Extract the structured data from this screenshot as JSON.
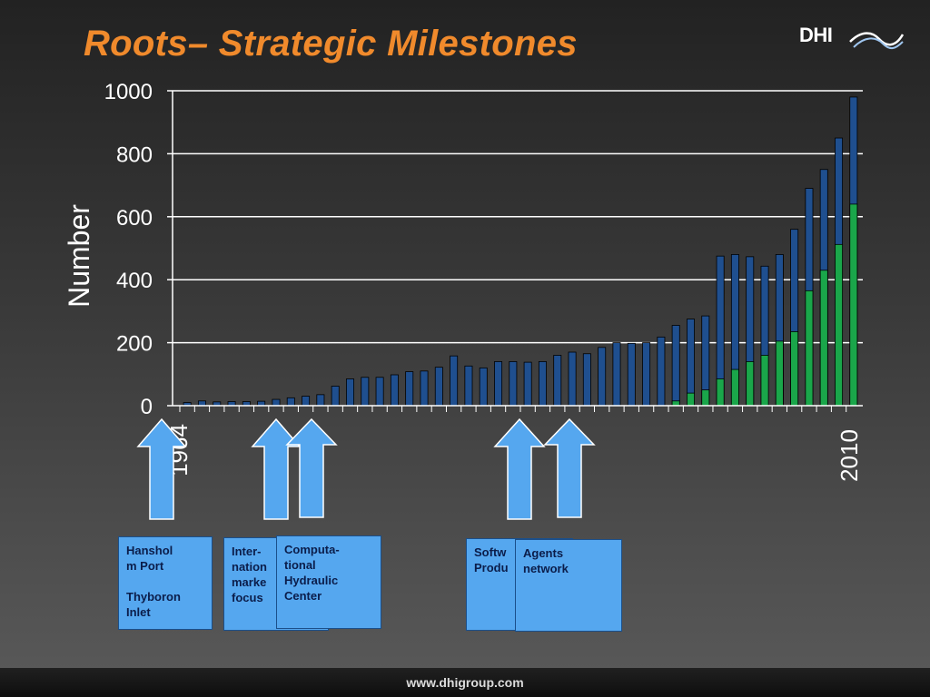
{
  "slide": {
    "title": "Roots– Strategic Milestones",
    "logo_text": "DHI",
    "footer": "www.dhigroup.com"
  },
  "colors": {
    "title": "#f08a2c",
    "bar_total": "#1f4f8f",
    "bar_software": "#1aa64a",
    "grid": "#ffffff",
    "text": "#ffffff",
    "arrow_fill": "#55a7ef",
    "box_fill": "#55a7ef"
  },
  "chart_data": {
    "type": "bar",
    "ylabel": "Number",
    "ylim": [
      0,
      1000
    ],
    "yticks": [
      0,
      200,
      400,
      600,
      800,
      1000
    ],
    "grid": true,
    "x_start": 1964,
    "x_end": 2010,
    "x_tick_labels": [
      "1964",
      "2010"
    ],
    "series": [
      {
        "values": [
          10,
          15,
          12,
          13,
          13,
          14,
          20,
          25,
          30,
          35,
          62,
          85,
          90,
          90,
          98,
          108,
          110,
          122,
          158,
          126,
          120,
          140,
          140,
          138,
          140,
          160,
          170,
          165,
          185,
          200,
          198,
          200,
          218,
          255,
          275,
          285,
          475,
          480,
          473,
          443,
          480,
          560,
          690,
          750,
          850,
          980
        ]
      },
      {
        "values": [
          0,
          0,
          0,
          0,
          0,
          0,
          0,
          0,
          0,
          0,
          0,
          0,
          0,
          0,
          0,
          0,
          0,
          0,
          0,
          0,
          0,
          0,
          0,
          0,
          0,
          0,
          0,
          0,
          0,
          0,
          0,
          0,
          0,
          15,
          40,
          50,
          85,
          115,
          140,
          160,
          205,
          235,
          365,
          430,
          512,
          640
        ]
      }
    ]
  },
  "milestones": [
    {
      "text": "Hanshol\nm Port\n\nThyboron\nInlet"
    },
    {
      "text": "Inter-\nnation\nmarke\nfocus"
    },
    {
      "text": "Computa-\ntional\nHydraulic\nCenter"
    },
    {
      "text": "Softw\nProdu"
    },
    {
      "text": "Agents\nnetwork"
    }
  ]
}
